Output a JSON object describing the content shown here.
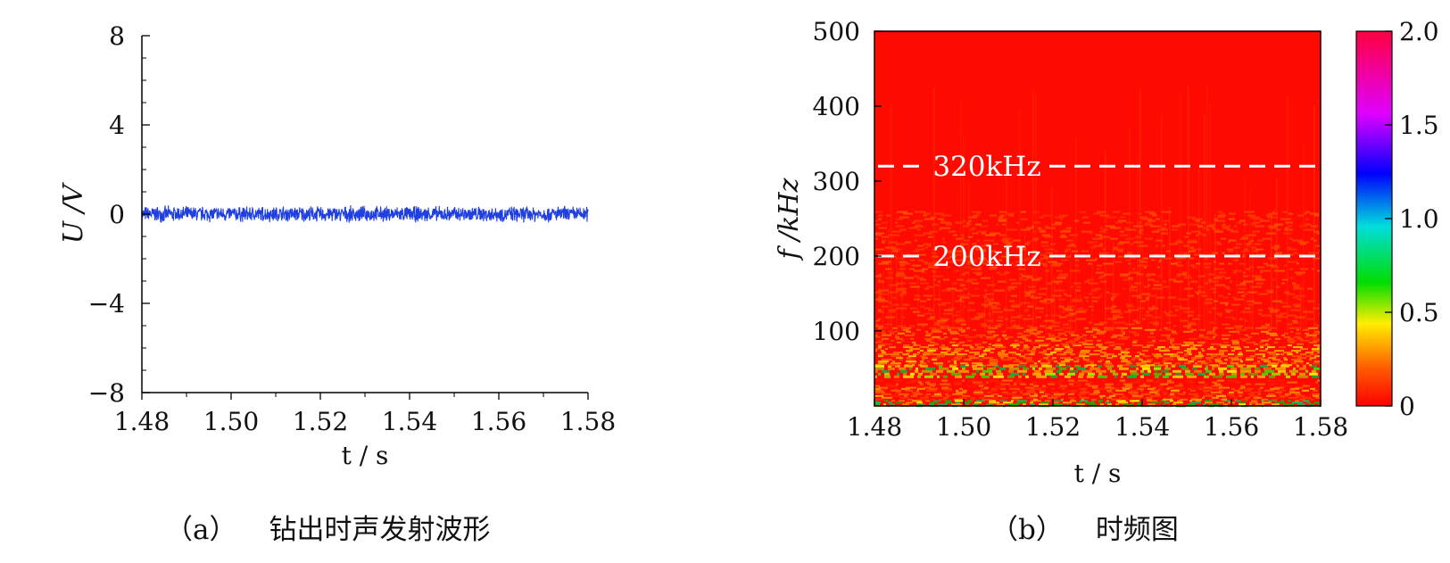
{
  "chart_data": [
    {
      "type": "line",
      "panel_label": "（a）",
      "caption": "钻出时声发射波形",
      "xlabel": "t / s",
      "ylabel": "U /V",
      "xlim": [
        1.48,
        1.58
      ],
      "ylim": [
        -8,
        8
      ],
      "x_ticks": [
        "1.48",
        "1.50",
        "1.52",
        "1.54",
        "1.56",
        "1.58"
      ],
      "y_ticks": [
        "−8",
        "−4",
        "0",
        "4",
        "8"
      ],
      "series": [
        {
          "color": "#1f3fe0",
          "amplitude_range": [
            -0.4,
            0.4
          ],
          "mean": 0
        }
      ]
    },
    {
      "type": "heatmap",
      "panel_label": "（b）",
      "caption": "时频图",
      "xlabel": "t / s",
      "ylabel": "f /kHz",
      "xlim": [
        1.48,
        1.58
      ],
      "ylim": [
        0,
        500
      ],
      "x_ticks": [
        "1.48",
        "1.50",
        "1.52",
        "1.54",
        "1.56",
        "1.58"
      ],
      "y_ticks": [
        "100",
        "200",
        "300",
        "400",
        "500"
      ],
      "colorbar": {
        "range": [
          0,
          2.0
        ],
        "ticks": [
          "0",
          "0.5",
          "1.0",
          "1.5",
          "2.0"
        ],
        "colormap": [
          "#ff0000",
          "#ff6a00",
          "#ffee00",
          "#00e000",
          "#00e0e0",
          "#0000ff",
          "#ff00ff",
          "#ff0044"
        ]
      },
      "annotations": [
        {
          "text": "320kHz",
          "y": 320,
          "style": "dashed-white"
        },
        {
          "text": "200kHz",
          "y": 200,
          "style": "dashed-white"
        }
      ]
    }
  ]
}
